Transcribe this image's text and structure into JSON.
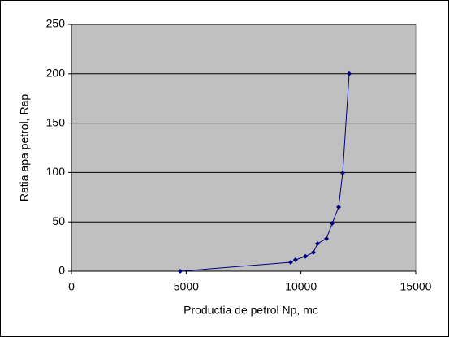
{
  "chart_data": {
    "type": "scatter-line",
    "xlabel": "Productia de petrol Np, mc",
    "ylabel": "Ratia apa petrol, Rap",
    "x": [
      4740,
      9550,
      9760,
      10190,
      10540,
      10720,
      11110,
      11360,
      11640,
      11815,
      12100
    ],
    "values": [
      0,
      9,
      11.5,
      15,
      19,
      28,
      33,
      48.5,
      65,
      99.5,
      200
    ],
    "color": "#000080",
    "plot_background": "#c0c0c0",
    "xlim": [
      0,
      15000
    ],
    "xticks": [
      0,
      5000,
      10000,
      15000
    ],
    "ylim": [
      0,
      250
    ],
    "yticks": [
      0,
      50,
      100,
      150,
      200,
      250
    ],
    "grid": true
  }
}
